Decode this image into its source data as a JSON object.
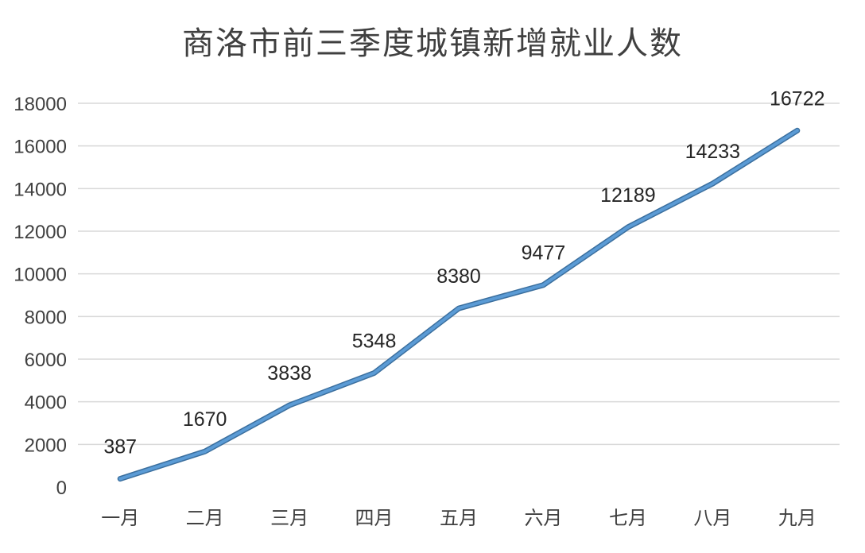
{
  "chart_data": {
    "type": "line",
    "title": "商洛市前三季度城镇新增就业人数",
    "xlabel": "",
    "ylabel": "",
    "categories": [
      "一月",
      "二月",
      "三月",
      "四月",
      "五月",
      "六月",
      "七月",
      "八月",
      "九月"
    ],
    "series": [
      {
        "values": [
          387,
          1670,
          3838,
          5348,
          8380,
          9477,
          12189,
          14233,
          16722
        ]
      }
    ],
    "ylim": [
      0,
      18000
    ],
    "yticks": [
      0,
      2000,
      4000,
      6000,
      8000,
      10000,
      12000,
      14000,
      16000,
      18000
    ],
    "grid": true,
    "legend": "none",
    "data_labels": true,
    "colors": {
      "line": "#5b9bd5",
      "line_shadow": "#3b6f9e",
      "grid": "#d9d9d9",
      "text": "#404040"
    }
  }
}
